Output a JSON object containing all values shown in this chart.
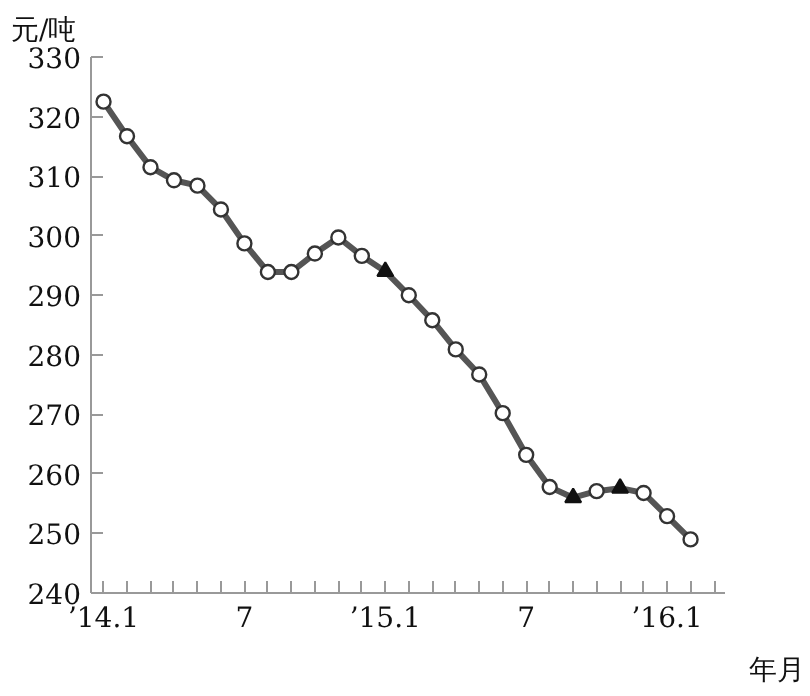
{
  "chart_data": {
    "type": "line",
    "ylabel": "元/吨",
    "xlabel": "年月",
    "x": [
      "2014-01",
      "2014-02",
      "2014-03",
      "2014-04",
      "2014-05",
      "2014-06",
      "2014-07",
      "2014-08",
      "2014-09",
      "2014-10",
      "2014-11",
      "2014-12",
      "2015-01",
      "2015-02",
      "2015-03",
      "2015-04",
      "2015-05",
      "2015-06",
      "2015-07",
      "2015-08",
      "2015-09",
      "2015-10",
      "2015-11",
      "2015-12",
      "2016-01",
      "2016-02"
    ],
    "series": [
      {
        "color": "#555555",
        "marker": "none",
        "values": [
          322.5,
          316.7,
          311.5,
          309.3,
          308.4,
          304.4,
          298.7,
          293.9,
          293.9,
          297,
          299.7,
          296.6,
          294,
          290,
          285.8,
          280.9,
          276.7,
          270.2,
          263.2,
          257.8,
          256,
          257.1,
          257.6,
          256.8,
          252.9,
          249
        ]
      },
      {
        "type": "scatter",
        "color": "#333333",
        "marker": "circle",
        "values": [
          322.5,
          316.7,
          311.5,
          309.3,
          308.4,
          304.4,
          298.7,
          293.9,
          293.9,
          297,
          299.7,
          296.6,
          null,
          290,
          285.8,
          280.9,
          276.7,
          270.2,
          263.2,
          257.8,
          null,
          257.1,
          null,
          256.8,
          252.9,
          249
        ]
      },
      {
        "type": "scatter",
        "color": "#111111",
        "marker": "triangle",
        "values": [
          null,
          null,
          null,
          null,
          null,
          null,
          null,
          null,
          null,
          null,
          null,
          null,
          294,
          null,
          null,
          null,
          null,
          null,
          null,
          null,
          256,
          null,
          257.6,
          null,
          null,
          null
        ]
      }
    ],
    "xlim": [
      "2013-12-15",
      "2016-03-15"
    ],
    "xticks": [
      {
        "value": "2014-01",
        "label": "’14.1"
      },
      {
        "value": "2014-02",
        "label": null
      },
      {
        "value": "2014-03",
        "label": null
      },
      {
        "value": "2014-04",
        "label": null
      },
      {
        "value": "2014-05",
        "label": null
      },
      {
        "value": "2014-06",
        "label": null
      },
      {
        "value": "2014-07",
        "label": "7"
      },
      {
        "value": "2014-08",
        "label": null
      },
      {
        "value": "2014-09",
        "label": null
      },
      {
        "value": "2014-10",
        "label": null
      },
      {
        "value": "2014-11",
        "label": null
      },
      {
        "value": "2014-12",
        "label": null
      },
      {
        "value": "2015-01",
        "label": "’15.1"
      },
      {
        "value": "2015-02",
        "label": null
      },
      {
        "value": "2015-03",
        "label": null
      },
      {
        "value": "2015-04",
        "label": null
      },
      {
        "value": "2015-05",
        "label": null
      },
      {
        "value": "2015-06",
        "label": null
      },
      {
        "value": "2015-07",
        "label": "7"
      },
      {
        "value": "2015-08",
        "label": null
      },
      {
        "value": "2015-09",
        "label": null
      },
      {
        "value": "2015-10",
        "label": null
      },
      {
        "value": "2015-11",
        "label": null
      },
      {
        "value": "2015-12",
        "label": null
      },
      {
        "value": "2016-01",
        "label": "’16.1"
      },
      {
        "value": "2016-02",
        "label": null
      },
      {
        "value": "2016-03",
        "label": null
      }
    ],
    "ylim": [
      240,
      330
    ],
    "yticks": [
      240,
      250,
      260,
      270,
      280,
      290,
      300,
      310,
      320,
      330
    ],
    "grid": false
  }
}
